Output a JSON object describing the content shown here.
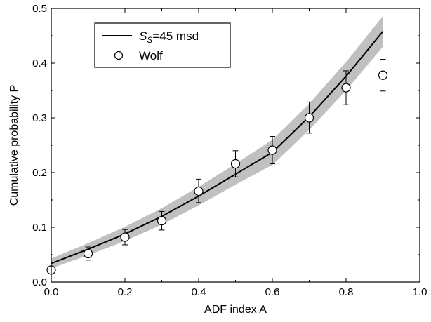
{
  "chart_data": {
    "type": "line",
    "xlabel": "ADF index A",
    "ylabel": "Cumulative probability P",
    "xlim": [
      0.0,
      1.0
    ],
    "ylim": [
      0.0,
      0.5
    ],
    "xticks": [
      "0.0",
      "0.2",
      "0.4",
      "0.6",
      "0.8",
      "1.0"
    ],
    "yticks": [
      "0.0",
      "0.1",
      "0.2",
      "0.3",
      "0.4",
      "0.5"
    ],
    "grid": false,
    "legend_position": "top-left",
    "series": [
      {
        "name": "S_S=45 msd",
        "legend_main": "S",
        "legend_sub": "S",
        "legend_rest": "=45 msd",
        "kind": "line",
        "color": "#000000",
        "band_color": "#c0c0c0",
        "x": [
          0.0,
          0.1,
          0.2,
          0.3,
          0.4,
          0.5,
          0.6,
          0.7,
          0.8,
          0.9
        ],
        "y": [
          0.034,
          0.06,
          0.088,
          0.12,
          0.157,
          0.197,
          0.237,
          0.302,
          0.376,
          0.458
        ],
        "band_low": [
          0.025,
          0.049,
          0.075,
          0.105,
          0.14,
          0.178,
          0.214,
          0.278,
          0.35,
          0.43
        ],
        "band_high": [
          0.043,
          0.071,
          0.101,
          0.135,
          0.174,
          0.216,
          0.26,
          0.326,
          0.402,
          0.486
        ]
      },
      {
        "name": "Wolf",
        "kind": "scatter",
        "marker": "open-circle",
        "color": "#000000",
        "x": [
          0.0,
          0.1,
          0.2,
          0.3,
          0.4,
          0.5,
          0.6,
          0.7,
          0.8,
          0.9
        ],
        "y": [
          0.022,
          0.052,
          0.082,
          0.112,
          0.166,
          0.216,
          0.241,
          0.3,
          0.355,
          0.378
        ],
        "err_low": [
          0.022,
          0.04,
          0.068,
          0.095,
          0.145,
          0.192,
          0.216,
          0.272,
          0.324,
          0.349
        ],
        "err_high": [
          0.022,
          0.064,
          0.096,
          0.129,
          0.188,
          0.24,
          0.266,
          0.329,
          0.386,
          0.407
        ]
      }
    ]
  }
}
